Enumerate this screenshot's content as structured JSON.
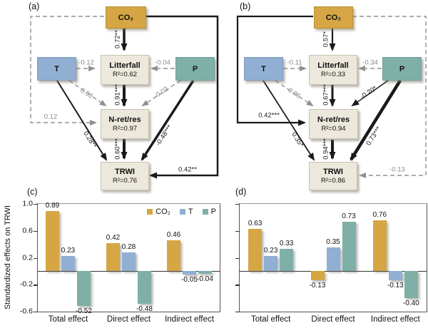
{
  "figure": {
    "panel_labels": {
      "a": "(a)",
      "b": "(b)",
      "c": "(c)",
      "d": "(d)"
    }
  },
  "colors": {
    "co2": "#D5A643",
    "t": "#91AFD2",
    "p": "#7FB0A7",
    "node_fill": "#EDE8DC",
    "dashed_path": "#909090",
    "solid_path": "#1A1A1A"
  },
  "panel_a": {
    "label": "(a)",
    "nodes": {
      "co2": "CO₂",
      "t": "T",
      "p": "P",
      "litterfall": "Litterfall",
      "litterfall_r2": "R²=0.62",
      "nret": "N-ret/res",
      "nret_r2": "R²=0.97",
      "trwi": "TRWI",
      "trwi_r2": "R²=0.76"
    },
    "paths": {
      "co2_litterfall": "0.72**",
      "t_litterfall": "-0.12",
      "p_litterfall": "-0.04",
      "litterfall_nret": "0.91***",
      "t_nret": "0.03",
      "p_nret": "-0.02",
      "co2_nret": "0.12",
      "t_trwi": "0.28**",
      "nret_trwi": "0.60***",
      "p_trwi": "-0.48***",
      "co2_trwi": "0.42**"
    }
  },
  "panel_b": {
    "label": "(b)",
    "nodes": {
      "co2": "CO₂",
      "t": "T",
      "p": "P",
      "litterfall": "Litterfall",
      "litterfall_r2": "R²=0.33",
      "nret": "N-ret/res",
      "nret_r2": "R²=0.94",
      "trwi": "TRWI",
      "trwi_r2": "R²=0.86"
    },
    "paths": {
      "co2_litterfall": "0.57*",
      "t_litterfall": "-0.11",
      "p_litterfall": "-0.34",
      "litterfall_nret": "0.67***",
      "t_nret": "-0.06",
      "p_nret": "-0.20*",
      "co2_nret": "0.42***",
      "t_trwi": "0.35*",
      "nret_trwi": "0.94***",
      "p_trwi": "0.73***",
      "co2_trwi": "-0.13"
    }
  },
  "chart_data": [
    {
      "type": "bar",
      "panel": "(c)",
      "title": "",
      "xlabel": "",
      "ylabel": "Standardized effects on TRWI",
      "ylim": [
        -0.6,
        1.0
      ],
      "yticks": [
        1.0,
        0.6,
        0.2,
        -0.2,
        -0.6
      ],
      "grid": false,
      "legend": true,
      "legend_position": "top-right",
      "show_yticklabels": true,
      "categories": [
        "Total effect",
        "Direct effect",
        "Indirect effect"
      ],
      "series": [
        {
          "name": "CO₂",
          "color": "#D5A643",
          "values": [
            0.89,
            0.42,
            0.46
          ]
        },
        {
          "name": "T",
          "color": "#91AFD2",
          "values": [
            0.23,
            0.28,
            -0.05
          ]
        },
        {
          "name": "P",
          "color": "#7FB0A7",
          "values": [
            -0.52,
            -0.48,
            -0.04
          ]
        }
      ]
    },
    {
      "type": "bar",
      "panel": "(d)",
      "title": "",
      "xlabel": "",
      "ylabel": "",
      "ylim": [
        -0.6,
        1.0
      ],
      "yticks": [
        1.0,
        0.6,
        0.2,
        -0.2,
        -0.6
      ],
      "grid": false,
      "legend": false,
      "show_yticklabels": false,
      "categories": [
        "Total effect",
        "Direct effect",
        "Indirect effect"
      ],
      "series": [
        {
          "name": "CO₂",
          "color": "#D5A643",
          "values": [
            0.63,
            -0.13,
            0.76
          ]
        },
        {
          "name": "T",
          "color": "#91AFD2",
          "values": [
            0.23,
            0.35,
            -0.13
          ]
        },
        {
          "name": "P",
          "color": "#7FB0A7",
          "values": [
            0.33,
            0.73,
            -0.4
          ]
        }
      ]
    }
  ]
}
